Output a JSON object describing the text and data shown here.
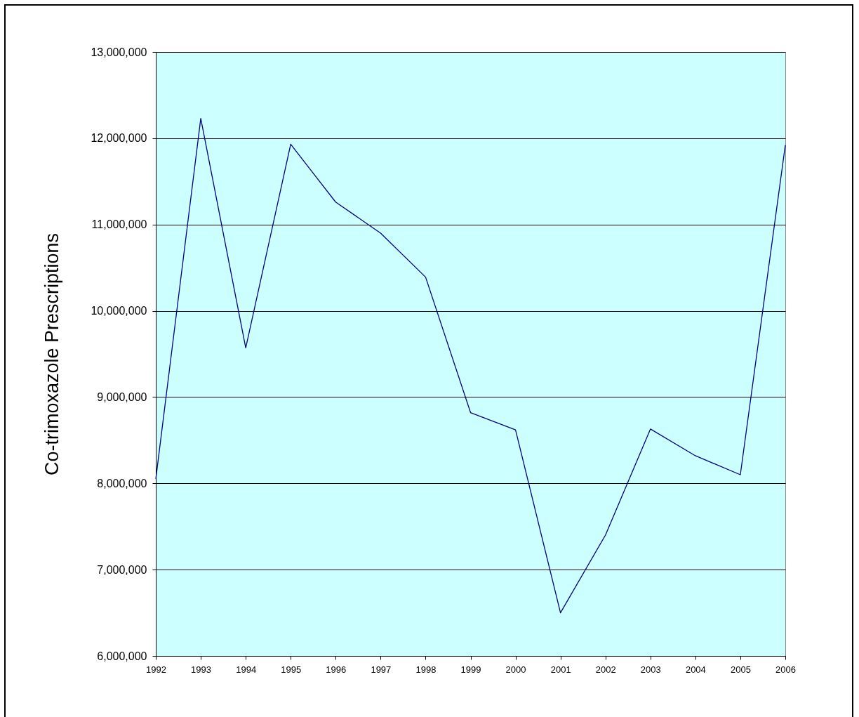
{
  "chart_data": {
    "type": "line",
    "ylabel": "Co-trimoxazole Prescriptions",
    "categories": [
      "1992",
      "1993",
      "1994",
      "1995",
      "1996",
      "1997",
      "1998",
      "1999",
      "2000",
      "2001",
      "2002",
      "2003",
      "2004",
      "2005",
      "2006"
    ],
    "series": [
      {
        "color": "#000080",
        "values": [
          8050000,
          12230000,
          9570000,
          11930000,
          11260000,
          10900000,
          10390000,
          8820000,
          8620000,
          6500000,
          7400000,
          8630000,
          8320000,
          8100000,
          11920000
        ]
      }
    ],
    "ylim": [
      6000000,
      13000000
    ],
    "yticks": [
      {
        "value": 6000000,
        "label": "6,000,000"
      },
      {
        "value": 7000000,
        "label": "7,000,000"
      },
      {
        "value": 8000000,
        "label": "8,000,000"
      },
      {
        "value": 9000000,
        "label": "9,000,000"
      },
      {
        "value": 10000000,
        "label": "10,000,000"
      },
      {
        "value": 11000000,
        "label": "11,000,000"
      },
      {
        "value": 12000000,
        "label": "12,000,000"
      },
      {
        "value": 13000000,
        "label": "13,000,000"
      }
    ],
    "grid": "y",
    "marker": "none",
    "line_style": "solid"
  }
}
